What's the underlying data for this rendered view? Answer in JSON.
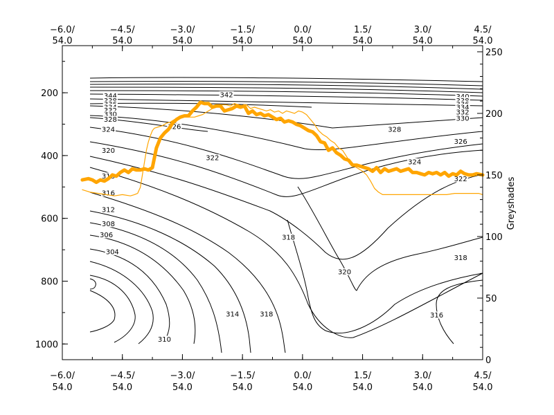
{
  "chart_data": {
    "type": "contour",
    "title": "",
    "x_axis": {
      "ticks": [
        -6.0,
        -4.5,
        -3.0,
        -1.5,
        0.0,
        1.5,
        3.0,
        4.5
      ],
      "tick_labels_top": [
        "−6.0/",
        "−4.5/",
        "−3.0/",
        "−1.5/",
        "0.0/",
        "1.5/",
        "3.0/",
        "4.5/"
      ],
      "tick_labels_bottom": [
        "54.0",
        "54.0",
        "54.0",
        "54.0",
        "54.0",
        "54.0",
        "54.0",
        "54.0"
      ],
      "range": [
        -6.0,
        4.5
      ]
    },
    "y_left": {
      "ticks": [
        200,
        400,
        600,
        800,
        1000
      ],
      "tick_labels": [
        "200",
        "400",
        "600",
        "800",
        "1000"
      ],
      "range": [
        1050,
        50
      ],
      "inverted": true
    },
    "y_right": {
      "label": "Greyshades",
      "ticks": [
        0,
        50,
        100,
        150,
        200,
        250
      ],
      "tick_labels": [
        "0",
        "50",
        "100",
        "150",
        "200",
        "250"
      ],
      "range": [
        0,
        255
      ]
    },
    "contour_labels": [
      {
        "text": "344",
        "x": -4.8,
        "y": 210
      },
      {
        "text": "342",
        "x": -1.9,
        "y": 206
      },
      {
        "text": "340",
        "x": 4.0,
        "y": 212
      },
      {
        "text": "338",
        "x": -4.8,
        "y": 225
      },
      {
        "text": "336",
        "x": -4.8,
        "y": 236
      },
      {
        "text": "334",
        "x": -4.8,
        "y": 246
      },
      {
        "text": "332",
        "x": -4.8,
        "y": 256
      },
      {
        "text": "330",
        "x": -4.8,
        "y": 268
      },
      {
        "text": "338",
        "x": 4.0,
        "y": 225
      },
      {
        "text": "336",
        "x": 4.0,
        "y": 236
      },
      {
        "text": "334",
        "x": 4.0,
        "y": 246
      },
      {
        "text": "332",
        "x": 4.0,
        "y": 262
      },
      {
        "text": "330",
        "x": 4.0,
        "y": 281
      },
      {
        "text": "328",
        "x": -4.8,
        "y": 285
      },
      {
        "text": "328",
        "x": 2.3,
        "y": 316
      },
      {
        "text": "326",
        "x": -3.2,
        "y": 308
      },
      {
        "text": "326",
        "x": 3.95,
        "y": 355
      },
      {
        "text": "324",
        "x": -4.85,
        "y": 316
      },
      {
        "text": "324",
        "x": 2.8,
        "y": 420
      },
      {
        "text": "322",
        "x": -2.25,
        "y": 407
      },
      {
        "text": "322",
        "x": 3.95,
        "y": 474
      },
      {
        "text": "320",
        "x": -4.85,
        "y": 384
      },
      {
        "text": "320",
        "x": 1.05,
        "y": 770
      },
      {
        "text": "318",
        "x": -4.85,
        "y": 465
      },
      {
        "text": "318",
        "x": -0.35,
        "y": 660
      },
      {
        "text": "318",
        "x": 3.95,
        "y": 725
      },
      {
        "text": "318",
        "x": -0.9,
        "y": 905
      },
      {
        "text": "316",
        "x": -4.85,
        "y": 519
      },
      {
        "text": "316",
        "x": 3.35,
        "y": 908
      },
      {
        "text": "314",
        "x": -1.75,
        "y": 905
      },
      {
        "text": "312",
        "x": -4.85,
        "y": 572
      },
      {
        "text": "310",
        "x": -3.45,
        "y": 985
      },
      {
        "text": "308",
        "x": -4.85,
        "y": 617
      },
      {
        "text": "306",
        "x": -4.9,
        "y": 652
      },
      {
        "text": "304",
        "x": -4.75,
        "y": 706
      }
    ],
    "series": [
      {
        "color": "#ffa500",
        "width": "thick",
        "x": [
          -5.5,
          -5.35,
          -5.25,
          -5.15,
          -5.05,
          -4.95,
          -4.85,
          -4.75,
          -4.65,
          -4.55,
          -4.45,
          -4.35,
          -4.25,
          -4.15,
          -4.05,
          -3.95,
          -3.85,
          -3.75,
          -3.65,
          -3.55,
          -3.45,
          -3.35,
          -3.25,
          -3.15,
          -3.05,
          -2.95,
          -2.85,
          -2.75,
          -2.65,
          -2.55,
          -2.45,
          -2.35,
          -2.25,
          -2.15,
          -2.05,
          -1.95,
          -1.85,
          -1.75,
          -1.65,
          -1.55,
          -1.45,
          -1.35,
          -1.25,
          -1.15,
          -1.05,
          -0.95,
          -0.85,
          -0.75,
          -0.65,
          -0.55,
          -0.45,
          -0.35,
          -0.25,
          -0.15,
          -0.05,
          0.05,
          0.15,
          0.25,
          0.35,
          0.45,
          0.55,
          0.65,
          0.75,
          0.85,
          0.95,
          1.05,
          1.15,
          1.25,
          1.35,
          1.45,
          1.55,
          1.65,
          1.75,
          1.85,
          1.95,
          2.05,
          2.15,
          2.25,
          2.35,
          2.45,
          2.55,
          2.65,
          2.75,
          2.85,
          2.95,
          3.05,
          3.15,
          3.25,
          3.35,
          3.45,
          3.55,
          3.65,
          3.75,
          3.85,
          3.95,
          4.05,
          4.15,
          4.25,
          4.35,
          4.5
        ],
        "y": [
          146,
          147,
          146,
          144,
          146,
          145,
          147,
          150,
          149,
          152,
          154,
          152,
          155,
          154,
          154,
          155,
          154,
          156,
          172,
          180,
          184,
          187,
          192,
          195,
          197,
          198,
          198,
          202,
          205,
          209,
          208,
          208,
          205,
          206,
          206,
          202,
          203,
          204,
          206,
          205,
          206,
          200,
          202,
          199,
          200,
          198,
          199,
          197,
          195,
          196,
          193,
          194,
          193,
          191,
          190,
          188,
          186,
          185,
          182,
          177,
          176,
          170,
          172,
          168,
          166,
          163,
          162,
          158,
          158,
          157,
          156,
          155,
          153,
          156,
          152,
          155,
          153,
          154,
          155,
          153,
          154,
          155,
          152,
          152,
          151,
          150,
          152,
          151,
          152,
          150,
          152,
          149,
          151,
          150,
          153,
          151,
          150,
          150,
          151,
          150
        ]
      },
      {
        "color": "#ffa500",
        "width": "thin",
        "x": [
          -5.5,
          -5.3,
          -5.1,
          -4.9,
          -4.7,
          -4.5,
          -4.3,
          -4.2,
          -4.12,
          -4.05,
          -4.0,
          -3.95,
          -3.9,
          -3.85,
          -3.8,
          -3.75,
          -3.7,
          -3.6,
          -3.5,
          -3.4,
          -3.3,
          -3.2,
          -3.1,
          -3.0,
          -2.9,
          -2.8,
          -2.7,
          -2.6,
          -2.5,
          -2.4,
          -2.3,
          -2.2,
          -2.1,
          -2.0,
          -1.9,
          -1.8,
          -1.7,
          -1.6,
          -1.5,
          -1.4,
          -1.3,
          -1.2,
          -1.1,
          -1.0,
          -0.9,
          -0.8,
          -0.7,
          -0.6,
          -0.5,
          -0.4,
          -0.3,
          -0.2,
          -0.1,
          0.0,
          0.1,
          0.2,
          0.3,
          0.4,
          0.5,
          0.6,
          0.7,
          0.8,
          0.9,
          1.0,
          1.1,
          1.2,
          1.3,
          1.4,
          1.5,
          1.6,
          1.7,
          1.8,
          1.9,
          2.0,
          2.1,
          2.2,
          2.4,
          2.6,
          2.8,
          3.0,
          3.2,
          3.4,
          3.6,
          3.8,
          4.0,
          4.2,
          4.4,
          4.5
        ],
        "y": [
          138,
          136,
          135,
          134,
          133,
          134,
          133,
          134,
          135,
          140,
          150,
          160,
          170,
          177,
          182,
          186,
          188,
          189,
          190,
          192,
          193,
          195,
          196,
          198,
          197,
          197,
          197,
          198,
          199,
          201,
          203,
          205,
          206,
          207,
          207,
          206,
          208,
          207,
          206,
          207,
          204,
          205,
          204,
          203,
          202,
          203,
          201,
          202,
          200,
          202,
          201,
          200,
          202,
          201,
          199,
          195,
          191,
          186,
          183,
          181,
          178,
          176,
          172,
          170,
          165,
          160,
          157,
          155,
          153,
          150,
          145,
          139,
          136,
          134,
          134,
          134,
          134,
          134,
          134,
          134,
          134,
          134,
          134,
          135,
          135,
          135,
          135,
          134
        ]
      }
    ]
  }
}
